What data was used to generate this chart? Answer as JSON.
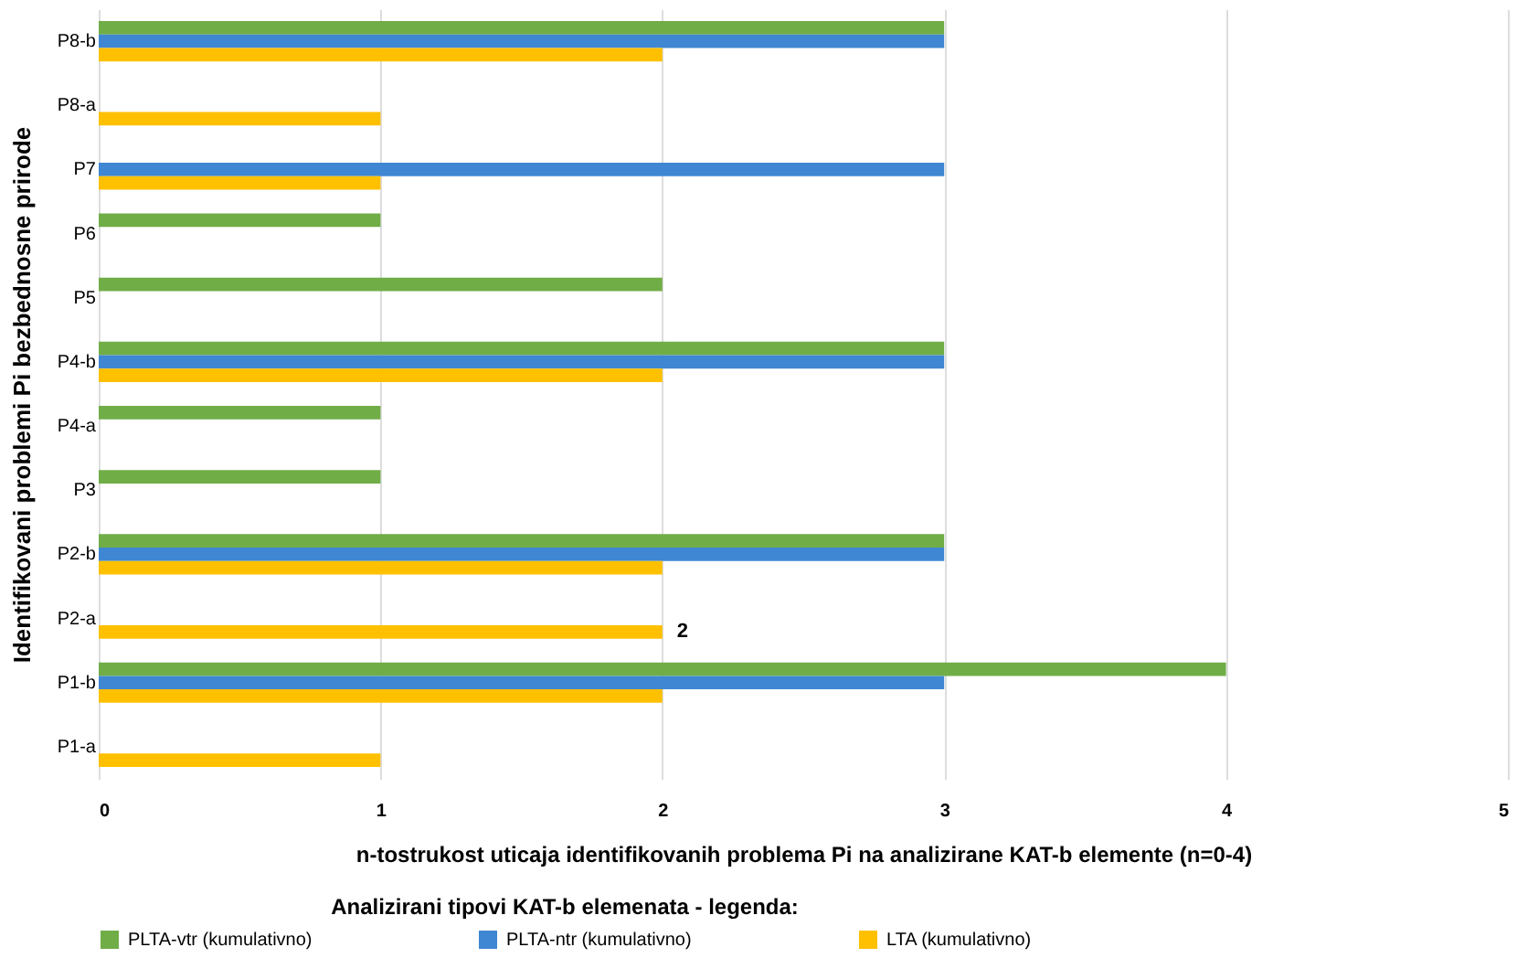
{
  "chart_data": {
    "type": "bar",
    "orientation": "horizontal",
    "xlabel": "n-tostrukost uticaja identifikovanih problema Pi na analizirane KAT-b elemente (n=0-4)",
    "ylabel": "Identifikovani problemi Pi bezbednosne prirode",
    "legend_title": "Analizirani tipovi KAT-b elemenata - legenda:",
    "categories": [
      "P8-b",
      "P8-a",
      "P7",
      "P6",
      "P5",
      "P4-b",
      "P4-a",
      "P3",
      "P2-b",
      "P2-a",
      "P1-b",
      "P1-a"
    ],
    "series": [
      {
        "name": "PLTA-vtr (kumulativno)",
        "color": "#70ad47",
        "values": [
          3,
          null,
          null,
          1,
          2,
          3,
          1,
          1,
          3,
          null,
          4,
          null
        ]
      },
      {
        "name": "PLTA-ntr (kumulativno)",
        "color": "#3f87d2",
        "values": [
          3,
          null,
          3,
          null,
          null,
          3,
          null,
          null,
          3,
          null,
          3,
          null
        ]
      },
      {
        "name": "LTA (kumulativno)",
        "color": "#ffc000",
        "values": [
          2,
          1,
          1,
          null,
          null,
          2,
          null,
          null,
          2,
          2,
          2,
          1
        ],
        "value_labels": [
          null,
          null,
          null,
          null,
          null,
          null,
          null,
          null,
          null,
          "2",
          null,
          null
        ]
      }
    ],
    "xlim": [
      0,
      5
    ],
    "xticks": [
      0,
      1,
      2,
      3,
      4,
      5
    ],
    "grid": "x",
    "legend": "bottom"
  }
}
